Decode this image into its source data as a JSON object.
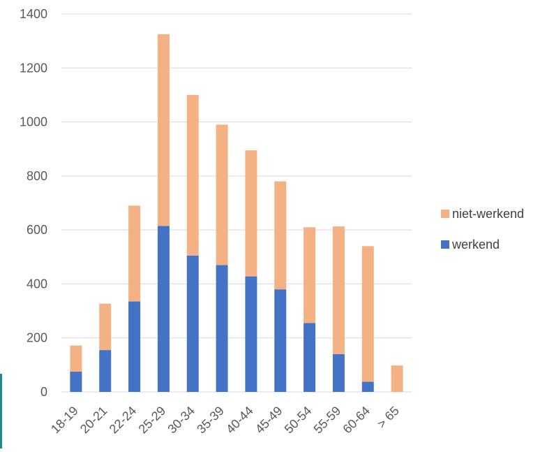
{
  "chart_data": {
    "type": "bar",
    "stacked": true,
    "categories": [
      "18-19",
      "20-21",
      "22-24",
      "25-29",
      "30-34",
      "35-39",
      "40-44",
      "45-49",
      "50-54",
      "55-59",
      "60-64",
      "> 65"
    ],
    "series": [
      {
        "name": "werkend",
        "color": "#4472c4",
        "values": [
          75,
          155,
          335,
          615,
          505,
          470,
          428,
          380,
          255,
          140,
          38,
          0
        ]
      },
      {
        "name": "niet-werkend",
        "color": "#f4b183",
        "values": [
          97,
          172,
          355,
          710,
          595,
          520,
          467,
          400,
          355,
          473,
          502,
          98
        ]
      }
    ],
    "ylim": [
      0,
      1400
    ],
    "yticks": [
      "0",
      "200",
      "400",
      "600",
      "800",
      "1000",
      "1200",
      "1400"
    ],
    "ytick_values": [
      0,
      200,
      400,
      600,
      800,
      1000,
      1200,
      1400
    ],
    "grid": true,
    "legend_position": "right",
    "title": "",
    "xlabel": "",
    "ylabel": ""
  }
}
